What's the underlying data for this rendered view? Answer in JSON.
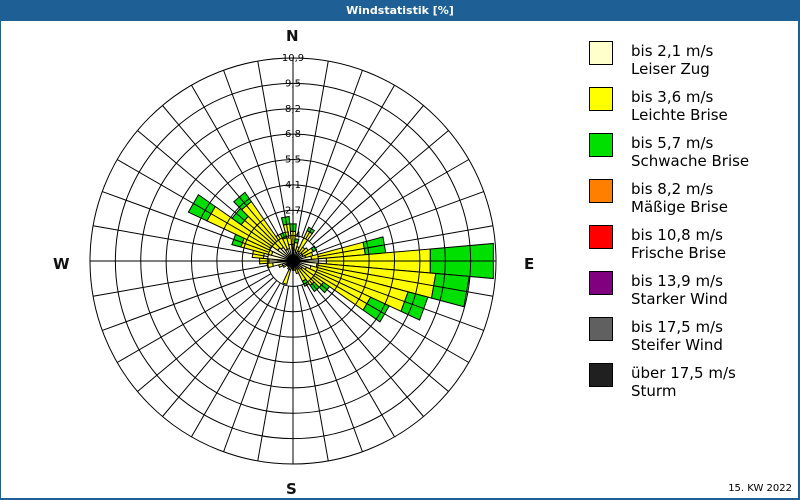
{
  "title": "Windstatistik [%]",
  "footer": "15. KW 2022",
  "compass": {
    "n": "N",
    "e": "E",
    "s": "S",
    "w": "W"
  },
  "legend": [
    {
      "line1": "bis 2,1 m/s",
      "line2": "Leiser Zug",
      "color": "#ffffcc"
    },
    {
      "line1": "bis 3,6 m/s",
      "line2": "Leichte Brise",
      "color": "#ffff00"
    },
    {
      "line1": "bis 5,7 m/s",
      "line2": "Schwache Brise",
      "color": "#00e000"
    },
    {
      "line1": "bis 8,2 m/s",
      "line2": "Mäßige Brise",
      "color": "#ff8000"
    },
    {
      "line1": "bis 10,8 m/s",
      "line2": "Frische Brise",
      "color": "#ff0000"
    },
    {
      "line1": "bis 13,9 m/s",
      "line2": "Starker Wind",
      "color": "#800080"
    },
    {
      "line1": "bis 17,5 m/s",
      "line2": "Steifer Wind",
      "color": "#606060"
    },
    {
      "line1": "über 17,5 m/s",
      "line2": "Sturm",
      "color": "#202020"
    }
  ],
  "chart_data": {
    "type": "polar-stacked-bar",
    "title": "Windstatistik [%]",
    "subtitle": "15. KW 2022",
    "ring_labels": [
      "1,4",
      "2,7",
      "4,1",
      "5,5",
      "6,8",
      "8,2",
      "9,5",
      "10,9"
    ],
    "rmax": 10.9,
    "sector_width_deg": 10,
    "series_names": [
      "Leiser Zug",
      "Leichte Brise",
      "Schwache Brise"
    ],
    "note": "cumulative percent per direction (outer edge of each speed class)",
    "sectors": [
      {
        "dir": 0,
        "cum": [
          0.9,
          1.6,
          2.0
        ]
      },
      {
        "dir": 10,
        "cum": [
          0.6,
          1.0,
          1.2
        ]
      },
      {
        "dir": 20,
        "cum": [
          0.5,
          0.8,
          0.8
        ]
      },
      {
        "dir": 30,
        "cum": [
          0.6,
          1.8,
          2.0
        ]
      },
      {
        "dir": 40,
        "cum": [
          0.5,
          0.9,
          0.9
        ]
      },
      {
        "dir": 50,
        "cum": [
          0.6,
          1.0,
          1.0
        ]
      },
      {
        "dir": 60,
        "cum": [
          0.6,
          1.2,
          1.4
        ]
      },
      {
        "dir": 70,
        "cum": [
          0.7,
          1.1,
          1.1
        ]
      },
      {
        "dir": 80,
        "cum": [
          1.0,
          3.9,
          5.0
        ]
      },
      {
        "dir": 90,
        "cum": [
          1.8,
          7.4,
          10.8
        ]
      },
      {
        "dir": 100,
        "cum": [
          1.3,
          7.7,
          9.5
        ]
      },
      {
        "dir": 110,
        "cum": [
          1.0,
          6.4,
          7.5
        ]
      },
      {
        "dir": 120,
        "cum": [
          0.8,
          4.6,
          5.7
        ]
      },
      {
        "dir": 130,
        "cum": [
          0.6,
          2.0,
          2.4
        ]
      },
      {
        "dir": 140,
        "cum": [
          0.5,
          1.6,
          2.0
        ]
      },
      {
        "dir": 150,
        "cum": [
          0.5,
          1.2,
          1.5
        ]
      },
      {
        "dir": 160,
        "cum": [
          0.4,
          0.7,
          0.7
        ]
      },
      {
        "dir": 170,
        "cum": [
          0.3,
          0.5,
          0.5
        ]
      },
      {
        "dir": 180,
        "cum": [
          0.3,
          0.5,
          0.5
        ]
      },
      {
        "dir": 190,
        "cum": [
          0.3,
          0.4,
          0.4
        ]
      },
      {
        "dir": 200,
        "cum": [
          0.5,
          1.3,
          1.3
        ]
      },
      {
        "dir": 210,
        "cum": [
          0.3,
          0.5,
          0.5
        ]
      },
      {
        "dir": 220,
        "cum": [
          0.3,
          0.4,
          0.4
        ]
      },
      {
        "dir": 230,
        "cum": [
          0.3,
          0.4,
          0.4
        ]
      },
      {
        "dir": 240,
        "cum": [
          0.4,
          0.6,
          0.6
        ]
      },
      {
        "dir": 250,
        "cum": [
          0.6,
          0.8,
          0.8
        ]
      },
      {
        "dir": 260,
        "cum": [
          1.1,
          1.4,
          1.4
        ]
      },
      {
        "dir": 270,
        "cum": [
          1.3,
          1.8,
          1.8
        ]
      },
      {
        "dir": 280,
        "cum": [
          1.6,
          2.2,
          2.2
        ]
      },
      {
        "dir": 290,
        "cum": [
          1.2,
          2.9,
          3.4
        ]
      },
      {
        "dir": 300,
        "cum": [
          1.4,
          5.1,
          6.2
        ]
      },
      {
        "dir": 310,
        "cum": [
          1.0,
          3.4,
          4.0
        ]
      },
      {
        "dir": 320,
        "cum": [
          0.9,
          3.9,
          4.5
        ]
      },
      {
        "dir": 330,
        "cum": [
          0.7,
          1.6,
          1.6
        ]
      },
      {
        "dir": 340,
        "cum": [
          0.7,
          1.3,
          1.6
        ]
      },
      {
        "dir": 350,
        "cum": [
          0.9,
          2.0,
          2.4
        ]
      }
    ]
  }
}
